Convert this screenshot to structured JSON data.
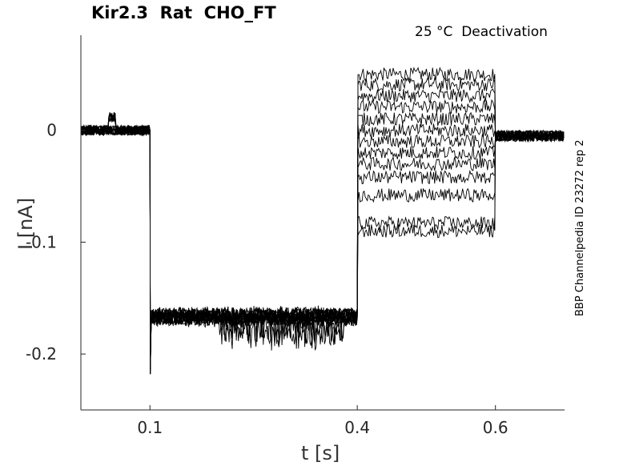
{
  "chart_data": {
    "type": "line",
    "title": "Kir2.3  Rat  CHO_FT",
    "subtitle": "25 °C  Deactivation",
    "side_label": "BBP Channelpedia ID 23272 rep 2",
    "xlabel": "t [s]",
    "ylabel": "I [nA]",
    "xlim": [
      0.0,
      0.7
    ],
    "ylim": [
      -0.25,
      0.085
    ],
    "xticks": [
      0.1,
      0.4,
      0.6
    ],
    "xtick_labels": [
      "0.1",
      "0.4",
      "0.6"
    ],
    "yticks": [
      0,
      -0.1,
      -0.2
    ],
    "ytick_labels": [
      "0",
      "-0.1",
      "-0.2"
    ],
    "grid": false,
    "line_color": "#000000",
    "segments": {
      "holding": {
        "t_start": 0.0,
        "t_end": 0.1,
        "current": 0.0
      },
      "step": {
        "t_start": 0.1,
        "t_end": 0.4,
        "current": -0.165
      },
      "test_pulse": {
        "t_start": 0.4,
        "t_end": 0.6
      },
      "tail": {
        "t_start": 0.6,
        "t_end": 0.7,
        "current": -0.005
      }
    },
    "series": [
      {
        "values_step": -0.165,
        "values_test": 0.05
      },
      {
        "values_step": -0.166,
        "values_test": 0.041
      },
      {
        "values_step": -0.167,
        "values_test": 0.031
      },
      {
        "values_step": -0.168,
        "values_test": 0.021
      },
      {
        "values_step": -0.165,
        "values_test": 0.01
      },
      {
        "values_step": -0.168,
        "values_test": 0.0
      },
      {
        "values_step": -0.166,
        "values_test": -0.01
      },
      {
        "values_step": -0.167,
        "values_test": -0.02
      },
      {
        "values_step": -0.165,
        "values_test": -0.03
      },
      {
        "values_step": -0.168,
        "values_test": -0.042
      },
      {
        "values_step": -0.166,
        "values_test": -0.058
      },
      {
        "values_step": -0.167,
        "values_test": -0.083
      },
      {
        "values_step": -0.169,
        "values_test": -0.09
      }
    ]
  }
}
